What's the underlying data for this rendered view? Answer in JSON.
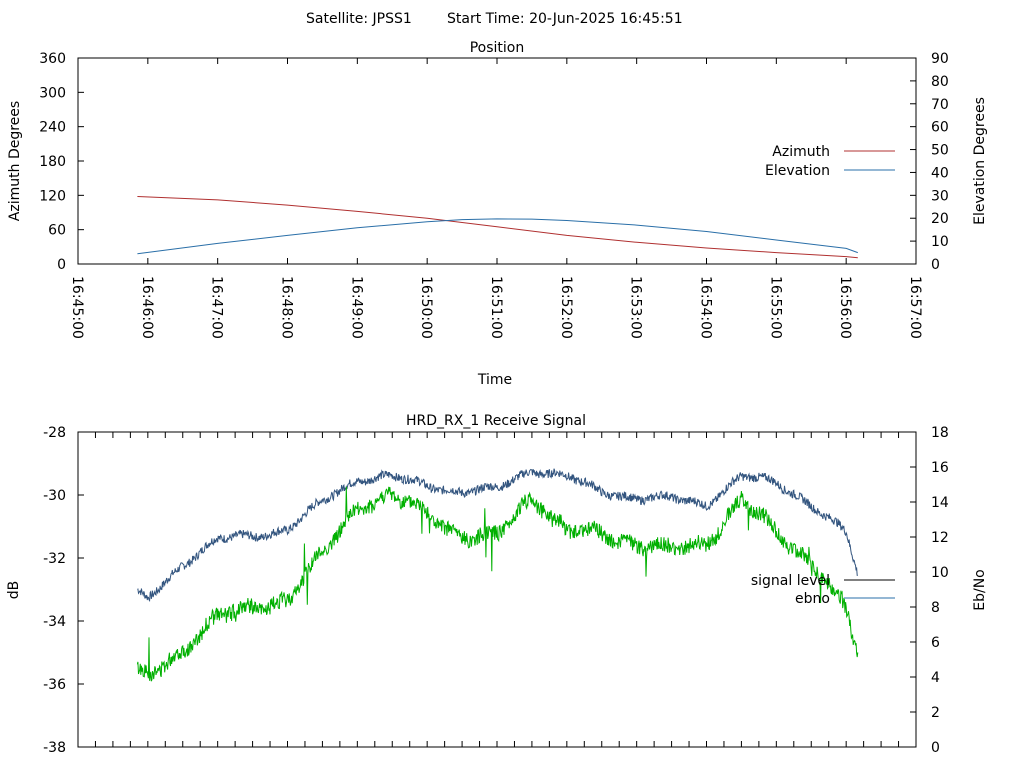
{
  "header": {
    "satellite": "Satellite: JPSS1",
    "start_time": "Start Time: 20-Jun-2025 16:45:51"
  },
  "colors": {
    "azimuth": "#b03030",
    "elevation": "#2a6fa8",
    "ebno_curve": "#33557f",
    "signal_curve": "#00b000",
    "legend_signal": "#000000",
    "legend_ebno": "#2a6fa8"
  },
  "chart_data": [
    {
      "type": "line",
      "title": "Position",
      "xlabel": "Time",
      "ylabel": "Azimuth Degrees",
      "y2label": "Elevation Degrees",
      "xlim": [
        "16:45:00",
        "16:57:00"
      ],
      "xticks": [
        "16:45:00",
        "16:46:00",
        "16:47:00",
        "16:48:00",
        "16:49:00",
        "16:50:00",
        "16:51:00",
        "16:52:00",
        "16:53:00",
        "16:54:00",
        "16:55:00",
        "16:56:00",
        "16:57:00"
      ],
      "ylim": [
        0,
        360
      ],
      "yticks": [
        "0",
        "60",
        "120",
        "180",
        "240",
        "300",
        "360"
      ],
      "y2lim": [
        0,
        90
      ],
      "y2ticks": [
        "0",
        "10",
        "20",
        "30",
        "40",
        "50",
        "60",
        "70",
        "80",
        "90"
      ],
      "legend": "right",
      "series": [
        {
          "name": "Azimuth",
          "axis": "left",
          "x": [
            "16:45:51",
            "16:47:00",
            "16:48:00",
            "16:49:00",
            "16:50:00",
            "16:51:00",
            "16:52:00",
            "16:53:00",
            "16:54:00",
            "16:55:00",
            "16:56:00",
            "16:56:10"
          ],
          "values": [
            118,
            112,
            103,
            92,
            80,
            65,
            50,
            38,
            28,
            20,
            13,
            11
          ]
        },
        {
          "name": "Elevation",
          "axis": "right",
          "x": [
            "16:45:51",
            "16:47:00",
            "16:48:00",
            "16:49:00",
            "16:50:00",
            "16:50:30",
            "16:51:00",
            "16:51:30",
            "16:52:00",
            "16:53:00",
            "16:54:00",
            "16:55:00",
            "16:56:00",
            "16:56:10"
          ],
          "values": [
            4.5,
            9,
            12.5,
            15.8,
            18.5,
            19.4,
            19.7,
            19.6,
            19,
            17,
            14.2,
            10.5,
            6.8,
            5
          ]
        }
      ]
    },
    {
      "type": "line",
      "title": "HRD_RX_1 Receive Signal",
      "ylabel": "dB",
      "y2label": "Eb/No",
      "xlim": [
        "16:45:00",
        "16:57:00"
      ],
      "ylim": [
        -38,
        -28
      ],
      "yticks": [
        "-38",
        "-36",
        "-34",
        "-32",
        "-30",
        "-28"
      ],
      "y2lim": [
        0,
        18
      ],
      "y2ticks": [
        "0",
        "2",
        "4",
        "6",
        "8",
        "10",
        "12",
        "14",
        "16",
        "18"
      ],
      "legend": "right",
      "legend_entries": [
        "signal level",
        "ebno"
      ],
      "series": [
        {
          "name": "",
          "axis": "left",
          "x": [
            "16:45:51",
            "16:46:00",
            "16:46:30",
            "16:47:00",
            "16:47:30",
            "16:48:00",
            "16:48:30",
            "16:49:00",
            "16:49:30",
            "16:50:00",
            "16:50:30",
            "16:51:00",
            "16:51:30",
            "16:52:00",
            "16:52:30",
            "16:53:00",
            "16:53:30",
            "16:54:00",
            "16:54:30",
            "16:55:00",
            "16:55:30",
            "16:56:00",
            "16:56:10"
          ],
          "values": [
            -33.1,
            -33.3,
            -32.2,
            -31.4,
            -31.3,
            -31.1,
            -30.2,
            -29.5,
            -29.4,
            -29.7,
            -29.9,
            -29.8,
            -29.2,
            -29.4,
            -29.9,
            -30.1,
            -30.1,
            -30.3,
            -29.4,
            -29.6,
            -30.3,
            -31.2,
            -32.5
          ]
        },
        {
          "name": "",
          "axis": "right",
          "x": [
            "16:45:51",
            "16:46:00",
            "16:46:30",
            "16:47:00",
            "16:47:30",
            "16:48:00",
            "16:48:30",
            "16:49:00",
            "16:49:30",
            "16:50:00",
            "16:50:30",
            "16:51:00",
            "16:51:30",
            "16:52:00",
            "16:52:30",
            "16:53:00",
            "16:53:30",
            "16:54:00",
            "16:54:30",
            "16:55:00",
            "16:55:30",
            "16:56:00",
            "16:56:10"
          ],
          "values": [
            4.2,
            4.0,
            5.6,
            7.4,
            8.0,
            8.4,
            11.0,
            13.8,
            14.3,
            13.4,
            12.0,
            12.0,
            14.4,
            12.3,
            12.2,
            11.6,
            11.2,
            11.7,
            14.1,
            12.3,
            10.6,
            7.8,
            5.2
          ]
        }
      ]
    }
  ]
}
